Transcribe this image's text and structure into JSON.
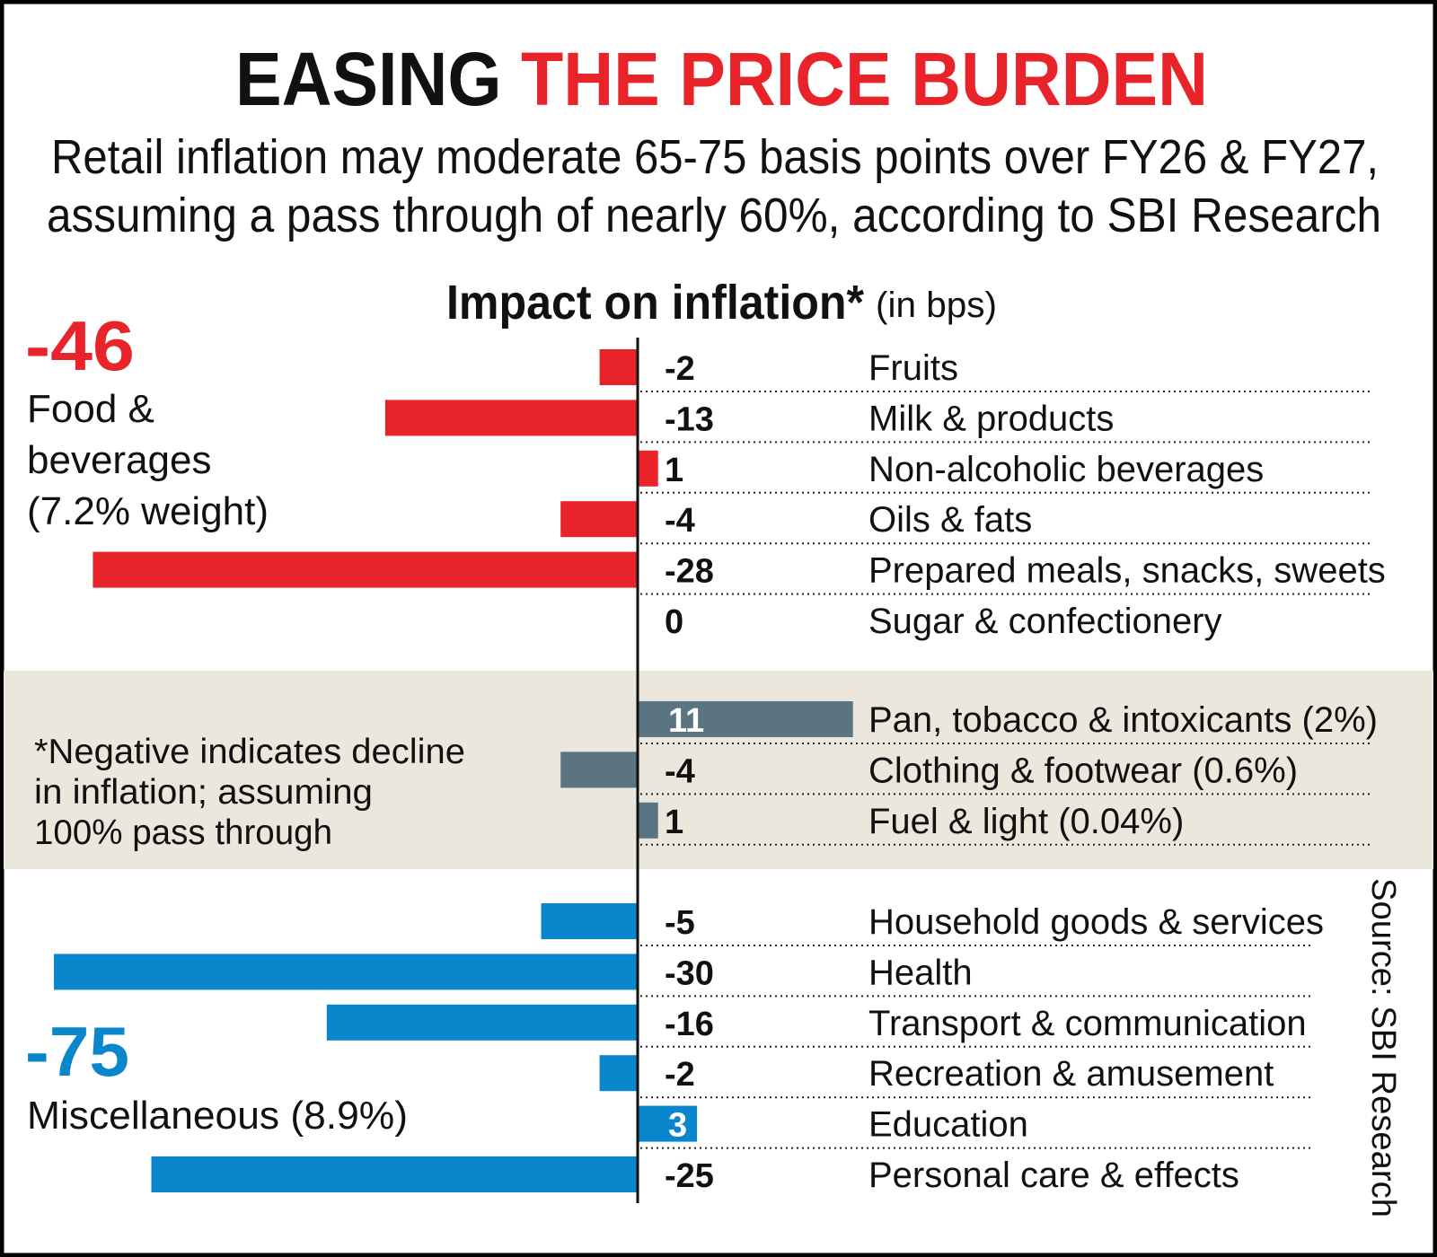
{
  "title": {
    "part1": "EASING",
    "part2": "THE PRICE BURDEN"
  },
  "subtitle": {
    "line1": "Retail inflation may moderate 65-75 basis points over FY26 & FY27,",
    "line2": "assuming a pass through of nearly 60%, according to SBI Research"
  },
  "source": "Source: SBI Research",
  "colors": {
    "red": "#e8232a",
    "gray": "#5b7482",
    "blue": "#0a86cc",
    "band": "#ebe7dd",
    "title_red": "#e8232a"
  },
  "annotations": {
    "food_total": "-46",
    "food_lines": [
      "Food &",
      "beverages",
      "(7.2% weight)"
    ],
    "misc_total": "-75",
    "misc_label": "Miscellaneous (8.9%)",
    "footnote_lines": [
      "*Negative indicates decline",
      "in inflation; assuming",
      "100% pass through"
    ]
  },
  "chart_data": {
    "type": "bar",
    "orientation": "horizontal",
    "title": "Impact on inflation*",
    "unit": "(in bps)",
    "groups": [
      {
        "color": "red",
        "rows": [
          {
            "label": "Fruits",
            "value": -2
          },
          {
            "label": "Milk & products",
            "value": -13
          },
          {
            "label": "Non-alcoholic beverages",
            "value": 1
          },
          {
            "label": "Oils & fats",
            "value": -4
          },
          {
            "label": "Prepared meals, snacks, sweets",
            "value": -28
          },
          {
            "label": "Sugar & confectionery",
            "value": 0
          }
        ]
      },
      {
        "color": "gray",
        "rows": [
          {
            "label": "Pan, tobacco & intoxicants (2%)",
            "value": 11
          },
          {
            "label": "Clothing & footwear (0.6%)",
            "value": -4
          },
          {
            "label": "Fuel & light (0.04%)",
            "value": 1
          }
        ]
      },
      {
        "color": "blue",
        "rows": [
          {
            "label": "Household goods & services",
            "value": -5
          },
          {
            "label": "Health",
            "value": -30
          },
          {
            "label": "Transport & communication",
            "value": -16
          },
          {
            "label": "Recreation & amusement",
            "value": -2
          },
          {
            "label": "Education",
            "value": 3
          },
          {
            "label": "Personal care & effects",
            "value": -25
          }
        ]
      }
    ]
  }
}
